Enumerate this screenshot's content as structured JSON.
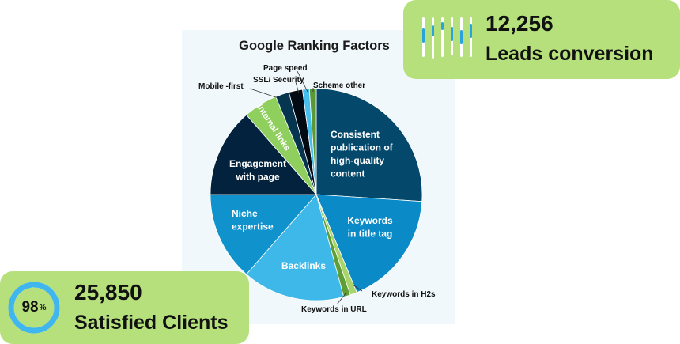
{
  "chart_data": {
    "type": "pie",
    "title": "Google Ranking Factors",
    "slices": [
      {
        "label": "Consistent publication of high-quality content",
        "value": 25.0,
        "color": "#04486b"
      },
      {
        "label": "Keywords in title tag",
        "value": 17.0,
        "color": "#0a8ac6"
      },
      {
        "label": "Keywords in H2s",
        "value": 1.0,
        "color": "#a9d36b"
      },
      {
        "label": "Keywords in URL",
        "value": 1.0,
        "color": "#5e9e34"
      },
      {
        "label": "Backlinks",
        "value": 15.0,
        "color": "#3db8e8"
      },
      {
        "label": "Niche expertise",
        "value": 13.0,
        "color": "#1092cc"
      },
      {
        "label": "Engagement with page",
        "value": 13.0,
        "color": "#03223d"
      },
      {
        "label": "Internal links",
        "value": 5.0,
        "color": "#8fcf5e"
      },
      {
        "label": "Mobile -first",
        "value": 2.0,
        "color": "#06354f"
      },
      {
        "label": "SSL/ Security",
        "value": 2.0,
        "color": "#020b13"
      },
      {
        "label": "Page speed",
        "value": 1.0,
        "color": "#47bfee"
      },
      {
        "label": "Scheme other",
        "value": 1.0,
        "color": "#5a9a36"
      }
    ]
  },
  "stats": {
    "leads": {
      "value": "12,256",
      "label": "Leads conversion"
    },
    "clients": {
      "value": "25,850",
      "label": "Satisfied Clients",
      "percent": 98,
      "percent_text": "98",
      "percent_suffix": "%"
    }
  },
  "colors": {
    "card": "#b6e07c",
    "ring_track": "#dff3fb",
    "ring_fill": "#3fb6ee",
    "bar_white": "#ffffff",
    "bar_blue": "#2aa3dd"
  }
}
